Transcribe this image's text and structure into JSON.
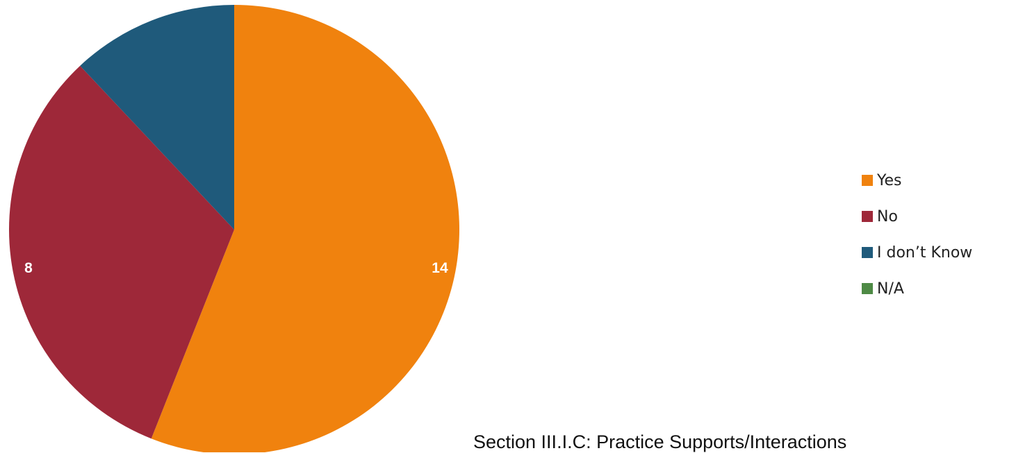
{
  "chart_data": {
    "type": "pie",
    "categories": [
      "Yes",
      "No",
      "I don’t Know",
      "N/A"
    ],
    "values": [
      14,
      8,
      3,
      0
    ],
    "colors": [
      "#f0820e",
      "#9e2839",
      "#1f5a7b",
      "#4e8a45"
    ],
    "data_labels": [
      "14",
      "8",
      "",
      ""
    ],
    "start_angle_deg": 0,
    "direction": "clockwise",
    "legend_position": "right"
  },
  "caption": "Section III.I.C: Practice Supports/Interactions"
}
